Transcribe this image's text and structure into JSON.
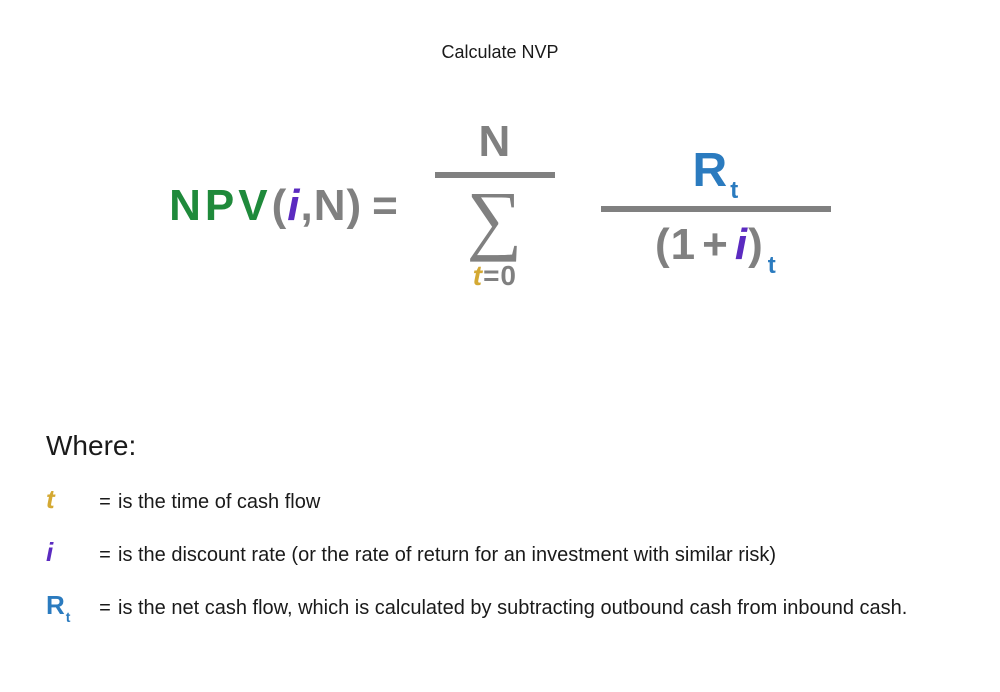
{
  "colors": {
    "green": "#1f8a3b",
    "gray": "#808080",
    "purple": "#5b2bc0",
    "gold": "#d4a933",
    "blue": "#2b7bbf",
    "text": "#1a1a1a",
    "bg": "#ffffff"
  },
  "title": "Calculate NVP",
  "formula": {
    "func": "NPV",
    "open_paren": "(",
    "arg_i": "i",
    "comma": ", ",
    "arg_N": "N",
    "close_paren": ")",
    "equals": " = ",
    "sum_upper": "N",
    "sigma": "∑",
    "sum_lower_var": "t",
    "sum_lower_rest": "=0",
    "num_R": "R",
    "num_sub": "t",
    "den_open": "(",
    "den_one": "1",
    "den_plus": "+",
    "den_i": "i",
    "den_close": ")",
    "den_sub": "t"
  },
  "where": {
    "heading": "Where:",
    "eq": "=",
    "rows": [
      {
        "symbol_main": "t",
        "symbol_sub": "",
        "symbol_class": "sym-t",
        "text": " is the time of cash flow"
      },
      {
        "symbol_main": "i",
        "symbol_sub": "",
        "symbol_class": "sym-i",
        "text": "is the discount rate (or the rate of return for an investment with similar risk)"
      },
      {
        "symbol_main": "R",
        "symbol_sub": "t",
        "symbol_class": "sym-R",
        "text": "is the net cash flow, which is calculated by subtracting outbound cash from inbound cash."
      }
    ]
  },
  "style": {
    "title_fontsize": 18,
    "formula_fontsize": 44,
    "sigma_fontsize": 78,
    "frac_line_width": 230,
    "sum_line_width": 120,
    "line_thickness": 6,
    "where_fontsize": 20,
    "where_heading_fontsize": 28
  }
}
